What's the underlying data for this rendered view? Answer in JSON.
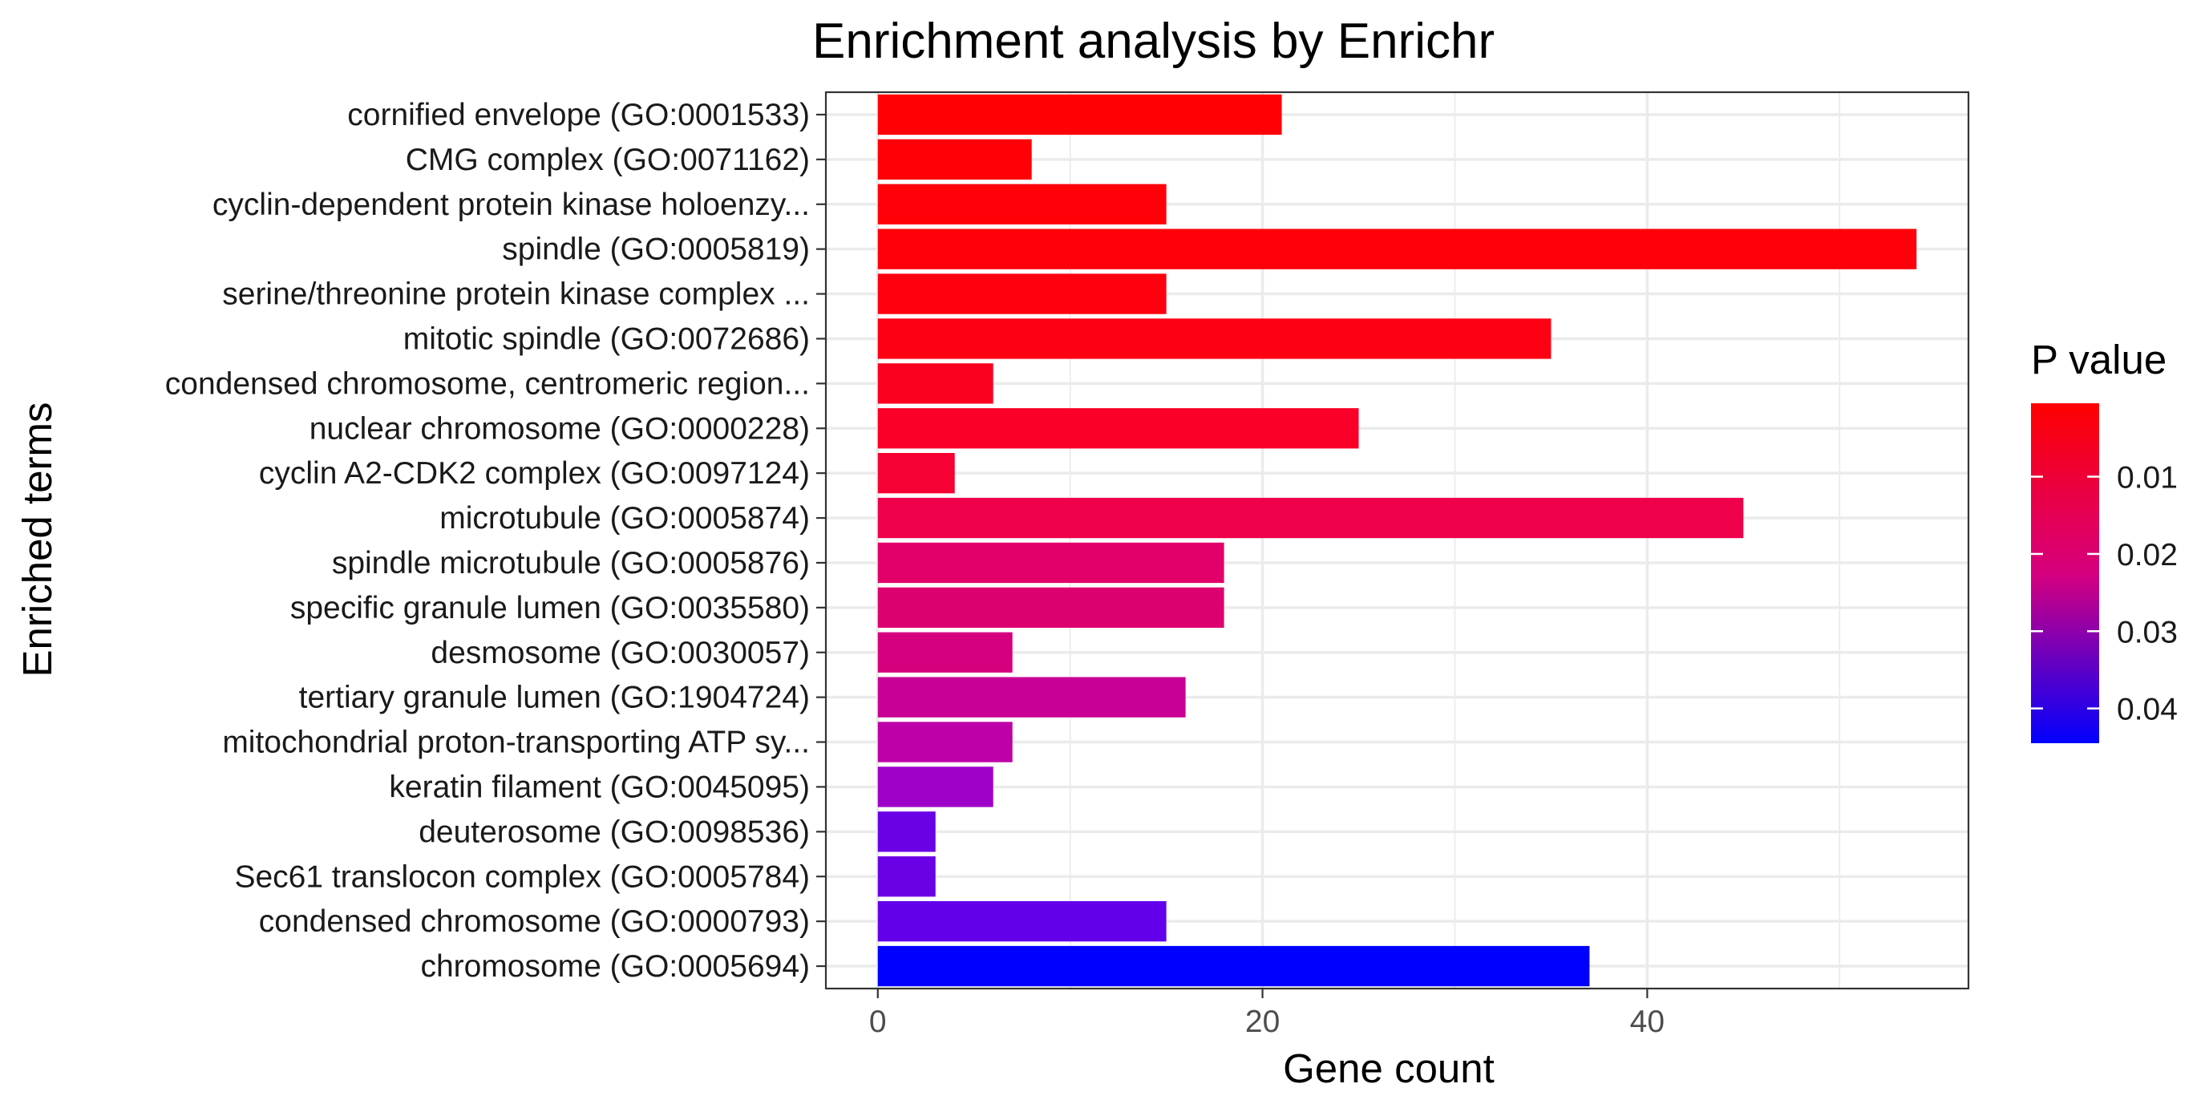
{
  "chart_data": {
    "type": "bar",
    "orientation": "horizontal",
    "title": "Enrichment analysis by Enrichr",
    "xlabel": "Gene count",
    "ylabel": "Enriched terms",
    "xlim": [
      -2.7,
      56.7
    ],
    "x_ticks": [
      0,
      20,
      40
    ],
    "x_tick_labels": [
      "0",
      "20",
      "40"
    ],
    "grid": true,
    "legend": {
      "title": "P value",
      "placement": "right",
      "type": "gradient",
      "p_min": 0.0005,
      "p_max": 0.0445,
      "ticks": [
        0.01,
        0.02,
        0.03,
        0.04
      ],
      "tick_labels": [
        "0.01",
        "0.02",
        "0.03",
        "0.04"
      ],
      "color_low": "#FF0000",
      "color_high": "#0000FF"
    },
    "bars": [
      {
        "term": "cornified envelope (GO:0001533)",
        "count": 21,
        "p_value": 0.0008,
        "color": "#FF0004"
      },
      {
        "term": "CMG complex (GO:0071162)",
        "count": 8,
        "p_value": 0.0012,
        "color": "#FF0006"
      },
      {
        "term": "cyclin-dependent protein kinase holoenzy...",
        "count": 15,
        "p_value": 0.0015,
        "color": "#FF0008"
      },
      {
        "term": "spindle (GO:0005819)",
        "count": 54,
        "p_value": 0.0018,
        "color": "#FF000A"
      },
      {
        "term": "serine/threonine protein kinase complex ...",
        "count": 15,
        "p_value": 0.0025,
        "color": "#FE000E"
      },
      {
        "term": "mitotic spindle (GO:0072686)",
        "count": 35,
        "p_value": 0.0035,
        "color": "#FE0014"
      },
      {
        "term": "condensed chromosome, centromeric region...",
        "count": 6,
        "p_value": 0.0055,
        "color": "#FC001F"
      },
      {
        "term": "nuclear chromosome (GO:0000228)",
        "count": 25,
        "p_value": 0.0065,
        "color": "#FA0028"
      },
      {
        "term": "cyclin A2-CDK2 complex (GO:0097124)",
        "count": 4,
        "p_value": 0.008,
        "color": "#F70033"
      },
      {
        "term": "microtubule (GO:0005874)",
        "count": 45,
        "p_value": 0.011,
        "color": "#EE004B"
      },
      {
        "term": "spindle microtubule (GO:0005876)",
        "count": 18,
        "p_value": 0.0165,
        "color": "#E1006A"
      },
      {
        "term": "specific granule lumen (GO:0035580)",
        "count": 18,
        "p_value": 0.017,
        "color": "#DD006F"
      },
      {
        "term": "desmosome (GO:0030057)",
        "count": 7,
        "p_value": 0.0195,
        "color": "#D6007E"
      },
      {
        "term": "tertiary granule lumen (GO:1904724)",
        "count": 16,
        "p_value": 0.024,
        "color": "#C80096"
      },
      {
        "term": "mitochondrial proton-transporting ATP sy...",
        "count": 7,
        "p_value": 0.0265,
        "color": "#BE00A8"
      },
      {
        "term": "keratin filament (GO:0045095)",
        "count": 6,
        "p_value": 0.0315,
        "color": "#9F00C8"
      },
      {
        "term": "deuterosome (GO:0098536)",
        "count": 3,
        "p_value": 0.0385,
        "color": "#6A00E6"
      },
      {
        "term": "Sec61 translocon complex (GO:0005784)",
        "count": 3,
        "p_value": 0.0385,
        "color": "#6A00E6"
      },
      {
        "term": "condensed chromosome (GO:0000793)",
        "count": 15,
        "p_value": 0.039,
        "color": "#6200EB"
      },
      {
        "term": "chromosome (GO:0005694)",
        "count": 37,
        "p_value": 0.0445,
        "color": "#0000FF"
      }
    ]
  }
}
